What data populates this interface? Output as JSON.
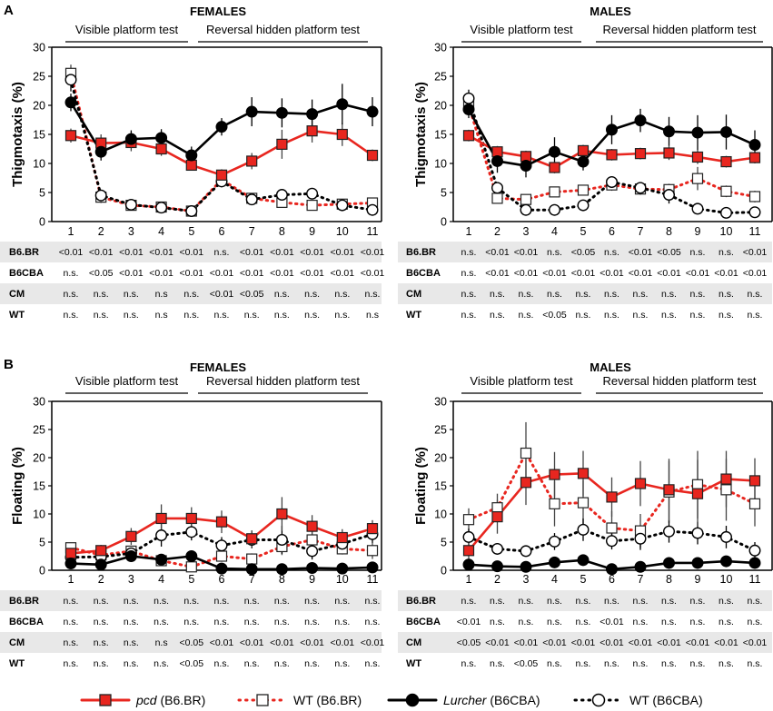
{
  "panels": [
    {
      "id": "A",
      "panel_label": "A",
      "ylabel": "Thigmotaxis (%)",
      "subplots": [
        {
          "title": "FEMALES",
          "phase_left": "Visible platform test",
          "phase_right": "Reversal hidden platform test",
          "chart_data": {
            "type": "line",
            "title": "FEMALES",
            "xlabel": "",
            "ylabel": "Thigmotaxis (%)",
            "x": [
              1,
              2,
              3,
              4,
              5,
              6,
              7,
              8,
              9,
              10,
              11
            ],
            "ylim": [
              0,
              30
            ],
            "yticks": [
              0,
              5,
              10,
              15,
              20,
              25,
              30
            ],
            "series": [
              {
                "name": "pcd (B6.BR)",
                "values": [
                  14.8,
                  13.5,
                  13.6,
                  12.5,
                  9.7,
                  8.0,
                  10.4,
                  13.3,
                  15.6,
                  15.0,
                  11.4
                ],
                "err": [
                  1.2,
                  1.5,
                  1.5,
                  1.2,
                  0.9,
                  1.0,
                  1.4,
                  2.5,
                  2.0,
                  2.0,
                  1.0
                ]
              },
              {
                "name": "WT (B6.BR)",
                "values": [
                  25.5,
                  4.2,
                  2.8,
                  2.5,
                  1.8,
                  7.2,
                  4.0,
                  3.3,
                  2.8,
                  3.0,
                  3.2
                ],
                "err": [
                  1.5,
                  1.0,
                  0.5,
                  0.5,
                  0.4,
                  1.2,
                  0.8,
                  0.8,
                  0.6,
                  0.6,
                  0.6
                ]
              },
              {
                "name": "Lurcher (B6CBA)",
                "values": [
                  20.5,
                  12.0,
                  14.2,
                  14.4,
                  11.4,
                  16.3,
                  18.9,
                  18.7,
                  18.5,
                  20.2,
                  18.9
                ],
                "err": [
                  1.5,
                  1.5,
                  1.5,
                  1.5,
                  1.5,
                  1.5,
                  2.5,
                  2.5,
                  2.5,
                  3.5,
                  2.5
                ]
              },
              {
                "name": "WT (B6CBA)",
                "values": [
                  24.4,
                  4.5,
                  2.9,
                  2.4,
                  1.8,
                  6.9,
                  3.8,
                  4.6,
                  4.8,
                  2.8,
                  2.0
                ],
                "err": [
                  2.0,
                  0.7,
                  0.5,
                  0.5,
                  0.4,
                  1.0,
                  0.8,
                  0.8,
                  0.8,
                  0.5,
                  0.5
                ]
              }
            ]
          },
          "stats": [
            [
              "<0.01",
              "<0.01",
              "<0.01",
              "<0.01",
              "<0.01",
              "n.s.",
              "<0.01",
              "<0.01",
              "<0.01",
              "<0.01",
              "<0.01"
            ],
            [
              "n.s.",
              "<0.05",
              "<0.01",
              "<0.01",
              "<0.01",
              "<0.01",
              "<0.01",
              "<0.01",
              "<0.01",
              "<0.01",
              "<0.01"
            ],
            [
              "n.s.",
              "n.s.",
              "n.s.",
              "n.s",
              "n.s.",
              "<0.01",
              "<0.05",
              "n.s.",
              "n.s.",
              "n.s.",
              "n.s."
            ],
            [
              "n.s.",
              "n.s.",
              "n.s.",
              "n.s",
              "n.s.",
              "n.s.",
              "n.s.",
              "n.s.",
              "n.s.",
              "n.s.",
              "n.s"
            ]
          ]
        },
        {
          "title": "MALES",
          "phase_left": "Visible platform test",
          "phase_right": "Reversal hidden platform test",
          "chart_data": {
            "type": "line",
            "title": "MALES",
            "xlabel": "",
            "ylabel": "Thigmotaxis (%)",
            "x": [
              1,
              2,
              3,
              4,
              5,
              6,
              7,
              8,
              9,
              10,
              11
            ],
            "ylim": [
              0,
              30
            ],
            "yticks": [
              0,
              5,
              10,
              15,
              20,
              25,
              30
            ],
            "series": [
              {
                "name": "pcd (B6.BR)",
                "values": [
                  14.8,
                  12.0,
                  11.2,
                  9.3,
                  12.2,
                  11.5,
                  11.7,
                  11.8,
                  11.1,
                  10.3,
                  11.0
                ],
                "err": [
                  1.0,
                  1.0,
                  1.0,
                  1.0,
                  1.0,
                  1.0,
                  1.0,
                  1.2,
                  1.2,
                  1.0,
                  1.0
                ]
              },
              {
                "name": "WT (B6.BR)",
                "values": [
                  20.0,
                  4.0,
                  3.8,
                  5.1,
                  5.4,
                  6.3,
                  5.6,
                  5.5,
                  7.4,
                  5.2,
                  4.3
                ],
                "err": [
                  1.5,
                  0.8,
                  0.8,
                  0.8,
                  0.8,
                  1.0,
                  1.0,
                  1.0,
                  2.0,
                  1.0,
                  1.0
                ]
              },
              {
                "name": "Lurcher (B6CBA)",
                "values": [
                  19.3,
                  10.4,
                  9.6,
                  12.0,
                  10.3,
                  15.8,
                  17.4,
                  15.5,
                  15.3,
                  15.4,
                  13.2
                ],
                "err": [
                  1.5,
                  2.0,
                  2.0,
                  2.5,
                  1.5,
                  2.5,
                  2.0,
                  2.5,
                  3.0,
                  3.0,
                  2.5
                ]
              },
              {
                "name": "WT (B6CBA)",
                "values": [
                  21.2,
                  5.8,
                  2.0,
                  2.0,
                  2.8,
                  6.8,
                  5.8,
                  4.6,
                  2.2,
                  1.5,
                  1.6
                ],
                "err": [
                  1.5,
                  0.8,
                  0.4,
                  0.4,
                  0.6,
                  1.0,
                  0.8,
                  1.5,
                  0.5,
                  0.4,
                  0.4
                ]
              }
            ]
          },
          "stats": [
            [
              "n.s.",
              "<0.01",
              "<0.01",
              "n.s.",
              "<0.05",
              "n.s.",
              "<0.01",
              "<0.05",
              "n.s.",
              "n.s.",
              "<0.01"
            ],
            [
              "n.s.",
              "<0.01",
              "<0.01",
              "<0.01",
              "<0.01",
              "<0.01",
              "<0.01",
              "<0.01",
              "<0.01",
              "<0.01",
              "<0.01"
            ],
            [
              "n.s.",
              "n.s.",
              "n.s.",
              "n.s.",
              "n.s.",
              "n.s.",
              "n.s.",
              "n.s.",
              "n.s.",
              "n.s.",
              "n.s."
            ],
            [
              "n.s.",
              "n.s.",
              "n.s.",
              "<0.05",
              "n.s.",
              "n.s.",
              "n.s.",
              "n.s.",
              "n.s.",
              "n.s.",
              "n.s."
            ]
          ]
        }
      ]
    },
    {
      "id": "B",
      "panel_label": "B",
      "ylabel": "Floating (%)",
      "subplots": [
        {
          "title": "FEMALES",
          "phase_left": "Visible platform test",
          "phase_right": "Reversal hidden platform test",
          "chart_data": {
            "type": "line",
            "title": "FEMALES",
            "xlabel": "",
            "ylabel": "Floating (%)",
            "x": [
              1,
              2,
              3,
              4,
              5,
              6,
              7,
              8,
              9,
              10,
              11
            ],
            "ylim": [
              0,
              30
            ],
            "yticks": [
              0,
              5,
              10,
              15,
              20,
              25,
              30
            ],
            "series": [
              {
                "name": "pcd (B6.BR)",
                "values": [
                  3.0,
                  3.5,
                  6.0,
                  9.2,
                  9.2,
                  8.6,
                  5.6,
                  10.0,
                  7.8,
                  5.8,
                  7.4
                ],
                "err": [
                  1.0,
                  1.0,
                  1.5,
                  2.5,
                  2.0,
                  2.0,
                  1.5,
                  3.0,
                  2.0,
                  1.5,
                  1.5
                ]
              },
              {
                "name": "WT (B6.BR)",
                "values": [
                  4.0,
                  2.7,
                  3.4,
                  1.7,
                  0.6,
                  2.5,
                  2.0,
                  4.2,
                  5.4,
                  3.8,
                  3.5
                ],
                "err": [
                  0.8,
                  0.6,
                  0.8,
                  0.5,
                  0.3,
                  1.0,
                  1.0,
                  1.5,
                  1.5,
                  1.0,
                  1.5
                ]
              },
              {
                "name": "Lurcher (B6CBA)",
                "values": [
                  1.2,
                  1.0,
                  2.5,
                  1.9,
                  2.5,
                  0.3,
                  0.2,
                  0.2,
                  0.4,
                  0.3,
                  0.5
                ],
                "err": [
                  0.5,
                  0.5,
                  1.0,
                  1.0,
                  1.0,
                  0.2,
                  0.2,
                  0.2,
                  0.2,
                  0.2,
                  0.3
                ]
              },
              {
                "name": "WT (B6CBA)",
                "values": [
                  2.3,
                  2.4,
                  3.0,
                  6.2,
                  6.8,
                  4.4,
                  5.4,
                  5.4,
                  3.4,
                  4.7,
                  6.4
                ],
                "err": [
                  0.8,
                  0.8,
                  1.0,
                  2.0,
                  1.5,
                  1.5,
                  1.5,
                  2.5,
                  1.5,
                  1.5,
                  1.5
                ]
              }
            ]
          },
          "stats": [
            [
              "n.s.",
              "n.s.",
              "n.s.",
              "n.s.",
              "n.s.",
              "n.s.",
              "n.s.",
              "n.s.",
              "n.s.",
              "n.s.",
              "n.s."
            ],
            [
              "n.s.",
              "n.s.",
              "n.s.",
              "n.s.",
              "n.s.",
              "n.s.",
              "n.s.",
              "n.s.",
              "n.s.",
              "n.s.",
              "n.s."
            ],
            [
              "n.s.",
              "n.s.",
              "n.s.",
              "n.s",
              "<0.05",
              "<0.01",
              "<0.01",
              "<0.01",
              "<0.01",
              "<0.01",
              "<0.01"
            ],
            [
              "n.s.",
              "n.s.",
              "n.s.",
              "n.s.",
              "<0.05",
              "n.s.",
              "n.s.",
              "n.s.",
              "n.s.",
              "n.s.",
              "n.s."
            ]
          ]
        },
        {
          "title": "MALES",
          "phase_left": "Visible platform test",
          "phase_right": "Reversal hidden platform test",
          "chart_data": {
            "type": "line",
            "title": "MALES",
            "xlabel": "",
            "ylabel": "Floating (%)",
            "x": [
              1,
              2,
              3,
              4,
              5,
              6,
              7,
              8,
              9,
              10,
              11
            ],
            "ylim": [
              0,
              30
            ],
            "yticks": [
              0,
              5,
              10,
              15,
              20,
              25,
              30
            ],
            "series": [
              {
                "name": "pcd (B6.BR)",
                "values": [
                  3.5,
                  9.5,
                  15.6,
                  17.0,
                  17.2,
                  13.0,
                  15.4,
                  14.3,
                  13.6,
                  16.2,
                  15.9
                ],
                "err": [
                  1.5,
                  3.0,
                  4.0,
                  4.0,
                  4.0,
                  3.5,
                  4.0,
                  5.5,
                  6.0,
                  5.0,
                  4.0
                ]
              },
              {
                "name": "WT (B6.BR)",
                "values": [
                  9.0,
                  11.1,
                  20.8,
                  11.8,
                  12.0,
                  7.5,
                  7.0,
                  13.9,
                  15.2,
                  14.3,
                  11.8
                ],
                "err": [
                  2.0,
                  2.5,
                  5.5,
                  4.0,
                  4.0,
                  3.0,
                  3.0,
                  5.5,
                  6.0,
                  5.5,
                  4.0
                ]
              },
              {
                "name": "Lurcher (B6CBA)",
                "values": [
                  1.0,
                  0.7,
                  0.6,
                  1.4,
                  1.8,
                  0.2,
                  0.6,
                  1.3,
                  1.3,
                  1.6,
                  1.3
                ],
                "err": [
                  0.4,
                  0.3,
                  0.3,
                  0.6,
                  0.8,
                  0.2,
                  0.3,
                  0.5,
                  0.5,
                  0.6,
                  0.5
                ]
              },
              {
                "name": "WT (B6CBA)",
                "values": [
                  5.9,
                  3.8,
                  3.4,
                  5.1,
                  7.2,
                  5.2,
                  5.6,
                  6.9,
                  6.6,
                  5.9,
                  3.5
                ],
                "err": [
                  1.5,
                  1.0,
                  0.8,
                  1.5,
                  2.0,
                  1.5,
                  2.0,
                  2.0,
                  2.0,
                  2.0,
                  1.5
                ]
              }
            ]
          },
          "stats": [
            [
              "n.s.",
              "n.s.",
              "n.s.",
              "n.s.",
              "n.s.",
              "n.s.",
              "n.s.",
              "n.s.",
              "n.s.",
              "n.s.",
              "n.s."
            ],
            [
              "<0.01",
              "n.s.",
              "n.s.",
              "n.s.",
              "n.s.",
              "<0.01",
              "n.s.",
              "n.s.",
              "n.s.",
              "n.s.",
              "n.s."
            ],
            [
              "<0.05",
              "<0.01",
              "<0.01",
              "<0.01",
              "<0.01",
              "<0.01",
              "<0.01",
              "<0.01",
              "<0.01",
              "<0.01",
              "<0.01"
            ],
            [
              "n.s.",
              "n.s.",
              "<0.05",
              "n.s.",
              "n.s.",
              "n.s.",
              "n.s.",
              "n.s.",
              "n.s.",
              "n.s.",
              "n.s."
            ]
          ]
        }
      ]
    }
  ],
  "row_labels": [
    "B6.BR",
    "B6CBA",
    "CM",
    "WT"
  ],
  "x_ticks": [
    "1",
    "2",
    "3",
    "4",
    "5",
    "6",
    "7",
    "8",
    "9",
    "10",
    "11"
  ],
  "y_ticks": [
    "0",
    "5",
    "10",
    "15",
    "20",
    "25",
    "30"
  ],
  "legend": [
    {
      "name": "pcd",
      "suffix": " (B6.BR)",
      "italic": true,
      "color": "#e8261f",
      "dash": "solid",
      "marker": "square",
      "fill": "#e8261f"
    },
    {
      "name": "WT",
      "suffix": " (B6.BR)",
      "italic": false,
      "color": "#e8261f",
      "dash": "dotted",
      "marker": "square",
      "fill": "#ffffff"
    },
    {
      "name": "Lurcher",
      "suffix": " (B6CBA)",
      "italic": true,
      "color": "#000000",
      "dash": "solid",
      "marker": "circle",
      "fill": "#000000"
    },
    {
      "name": "WT",
      "suffix": " (B6CBA)",
      "italic": false,
      "color": "#000000",
      "dash": "dotted",
      "marker": "circle",
      "fill": "#ffffff"
    }
  ],
  "colors": {
    "pcd": "#e8261f",
    "lurcher": "#000000",
    "band": "#e8e8e8",
    "marker_edge": "#333333"
  }
}
